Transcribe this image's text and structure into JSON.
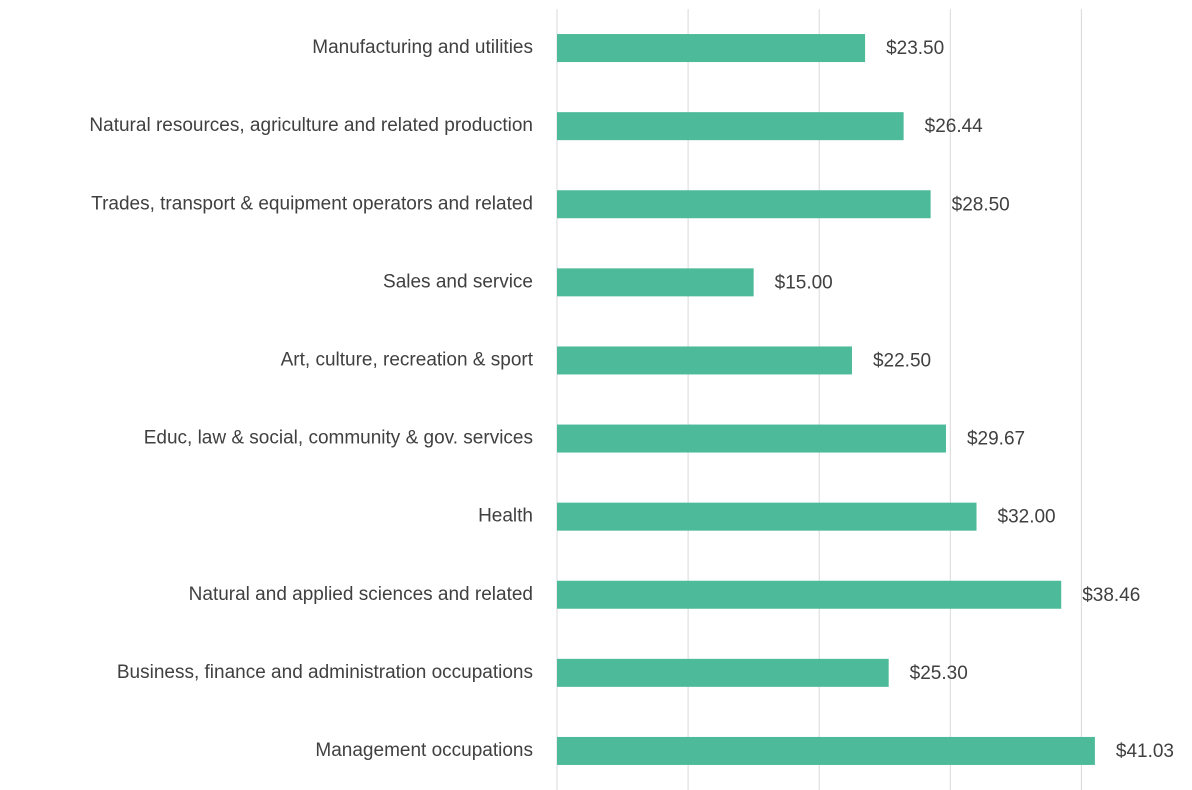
{
  "chart_data": {
    "type": "barh",
    "categories": [
      "Manufacturing and utilities",
      "Natural resources, agriculture and related production",
      "Trades, transport & equipment operators and related",
      "Sales and service",
      "Art, culture, recreation & sport",
      "Educ, law & social, community & gov. services",
      "Health",
      "Natural and applied sciences and related",
      "Business, finance and administration occupations",
      "Management occupations"
    ],
    "values": [
      23.5,
      26.44,
      28.5,
      15.0,
      22.5,
      29.67,
      32.0,
      38.46,
      25.3,
      41.03
    ],
    "value_labels": [
      "$23.50",
      "$26.44",
      "$28.50",
      "$15.00",
      "$22.50",
      "$29.67",
      "$32.00",
      "$38.46",
      "$25.30",
      "$41.03"
    ],
    "color": "#4dbb9a",
    "xlim": [
      0,
      45
    ],
    "xticks": [
      0,
      10,
      20,
      30,
      40
    ],
    "grid": true
  }
}
